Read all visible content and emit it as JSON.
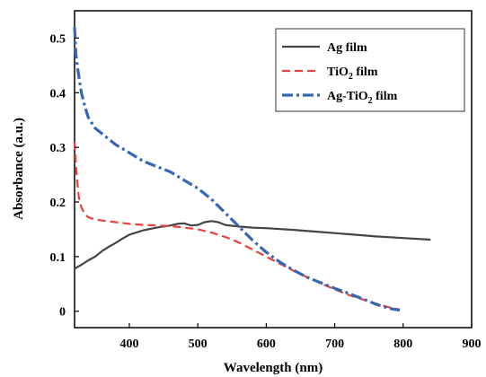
{
  "chart_data": {
    "type": "line",
    "title": "",
    "xlabel": "Wavelength (nm)",
    "ylabel": "Absorbance (a.u.)",
    "xlim": [
      320,
      900
    ],
    "ylim": [
      -0.03,
      0.55
    ],
    "x_ticks": [
      400,
      500,
      600,
      700,
      800,
      900
    ],
    "y_ticks": [
      0,
      0.1,
      0.2,
      0.3,
      0.4,
      0.5
    ],
    "x_tick_labels": [
      "400",
      "500",
      "600",
      "700",
      "800",
      "900"
    ],
    "y_tick_labels": [
      "0",
      "0.1",
      "0.2",
      "0.3",
      "0.4",
      "0.5"
    ],
    "grid": false,
    "legend_position": "top-right",
    "series": [
      {
        "name": "Ag film",
        "name_parts": [
          "Ag film"
        ],
        "color": "#444444",
        "style": "solid",
        "x": [
          320,
          330,
          340,
          350,
          360,
          370,
          380,
          390,
          400,
          420,
          440,
          460,
          470,
          480,
          490,
          500,
          510,
          520,
          530,
          540,
          560,
          580,
          600,
          640,
          680,
          720,
          760,
          800,
          840
        ],
        "y": [
          0.078,
          0.085,
          0.093,
          0.1,
          0.11,
          0.118,
          0.125,
          0.133,
          0.14,
          0.148,
          0.153,
          0.157,
          0.16,
          0.161,
          0.157,
          0.158,
          0.163,
          0.165,
          0.163,
          0.158,
          0.155,
          0.153,
          0.152,
          0.149,
          0.145,
          0.141,
          0.137,
          0.134,
          0.131
        ]
      },
      {
        "name": "TiO2 film",
        "name_parts": [
          "TiO",
          "2",
          " film"
        ],
        "color": "#e8403a",
        "style": "dashed",
        "x": [
          320,
          323,
          326,
          330,
          335,
          340,
          350,
          360,
          380,
          400,
          420,
          440,
          460,
          480,
          500,
          520,
          540,
          560,
          580,
          600,
          620,
          640,
          660,
          680,
          700,
          720,
          740,
          760,
          780,
          795
        ],
        "y": [
          0.31,
          0.25,
          0.21,
          0.19,
          0.178,
          0.172,
          0.168,
          0.166,
          0.163,
          0.16,
          0.158,
          0.157,
          0.156,
          0.153,
          0.15,
          0.144,
          0.136,
          0.126,
          0.113,
          0.1,
          0.087,
          0.074,
          0.062,
          0.051,
          0.04,
          0.03,
          0.022,
          0.014,
          0.007,
          0.003
        ]
      },
      {
        "name": "Ag-TiO2 film",
        "name_parts": [
          "Ag-TiO",
          "2",
          " film"
        ],
        "color": "#3567b5",
        "style": "dashdot",
        "x": [
          320,
          322,
          325,
          330,
          335,
          340,
          350,
          360,
          370,
          380,
          400,
          420,
          440,
          460,
          480,
          500,
          520,
          540,
          560,
          580,
          600,
          620,
          640,
          660,
          680,
          700,
          720,
          740,
          760,
          780,
          795
        ],
        "y": [
          0.52,
          0.47,
          0.44,
          0.4,
          0.375,
          0.355,
          0.335,
          0.325,
          0.315,
          0.305,
          0.29,
          0.275,
          0.265,
          0.255,
          0.24,
          0.225,
          0.205,
          0.18,
          0.155,
          0.13,
          0.108,
          0.09,
          0.075,
          0.062,
          0.052,
          0.042,
          0.033,
          0.023,
          0.013,
          0.005,
          0.002
        ]
      }
    ]
  }
}
